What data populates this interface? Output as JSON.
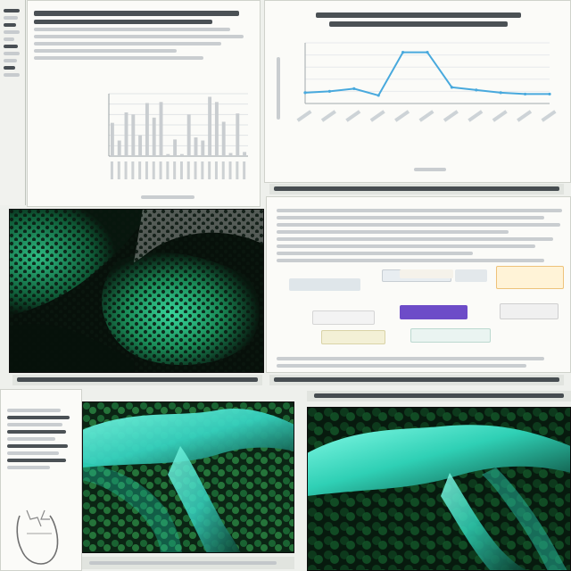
{
  "colors": {
    "paper": "#fbfbf8",
    "blue_line": "#48a9dd",
    "bar": "#c9cdd0",
    "accent_purple": "#6d4cc8",
    "accent_orange": "#efb06b",
    "teal_glow": "#46f2d1"
  },
  "panels": {
    "bar_chart": {
      "chart_data": {
        "type": "bar",
        "categories": [
          "1",
          "2",
          "3",
          "4",
          "5",
          "6",
          "7",
          "8",
          "9",
          "10",
          "11",
          "12",
          "13",
          "14",
          "15",
          "16",
          "17",
          "18",
          "19",
          "20"
        ],
        "values": [
          32,
          15,
          42,
          40,
          20,
          51,
          37,
          52,
          2,
          16,
          2,
          40,
          18,
          15,
          57,
          52,
          33,
          3,
          41,
          4
        ],
        "ylim": [
          0,
          60
        ],
        "grid": true
      }
    },
    "line_chart": {
      "chart_data": {
        "type": "line",
        "x": [
          1,
          2,
          3,
          4,
          5,
          6,
          7,
          8,
          9,
          10,
          11
        ],
        "series": [
          {
            "values": [
              18,
              19,
              21,
              16,
              48,
              48,
              22,
              20,
              18,
              17,
              17
            ]
          }
        ],
        "ylim": [
          10,
          55
        ],
        "grid": true
      }
    },
    "images": {
      "icons": [
        "honeycomb-texture-icon",
        "teal-fiber-icon"
      ]
    }
  }
}
